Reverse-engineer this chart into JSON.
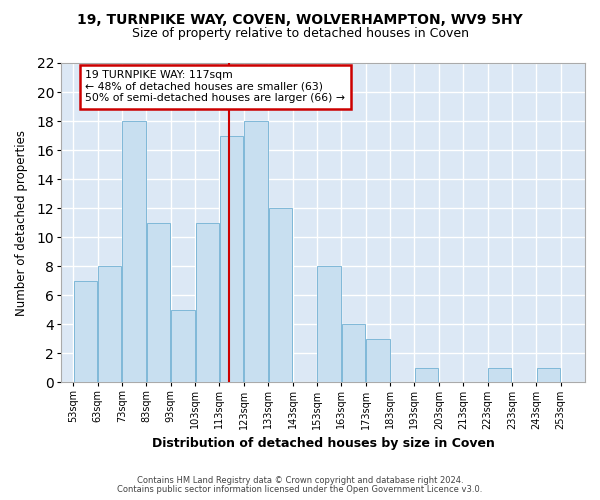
{
  "title1": "19, TURNPIKE WAY, COVEN, WOLVERHAMPTON, WV9 5HY",
  "title2": "Size of property relative to detached houses in Coven",
  "xlabel": "Distribution of detached houses by size in Coven",
  "ylabel": "Number of detached properties",
  "bins": [
    53,
    63,
    73,
    83,
    93,
    103,
    113,
    123,
    133,
    143,
    153,
    163,
    173,
    183,
    193,
    203,
    213,
    223,
    233,
    243,
    253
  ],
  "counts": [
    7,
    8,
    18,
    11,
    5,
    11,
    17,
    18,
    12,
    0,
    8,
    4,
    3,
    0,
    1,
    0,
    0,
    1,
    0,
    1
  ],
  "bar_color": "#c8dff0",
  "bar_edgecolor": "#7fb8d8",
  "reference_line_x": 117,
  "reference_line_color": "#cc0000",
  "ylim": [
    0,
    22
  ],
  "yticks": [
    0,
    2,
    4,
    6,
    8,
    10,
    12,
    14,
    16,
    18,
    20,
    22
  ],
  "annotation_title": "19 TURNPIKE WAY: 117sqm",
  "annotation_line1": "← 48% of detached houses are smaller (63)",
  "annotation_line2": "50% of semi-detached houses are larger (66) →",
  "annotation_box_facecolor": "white",
  "annotation_box_edgecolor": "#cc0000",
  "footnote1": "Contains HM Land Registry data © Crown copyright and database right 2024.",
  "footnote2": "Contains public sector information licensed under the Open Government Licence v3.0.",
  "plot_bg_color": "#dce8f5",
  "fig_bg_color": "#ffffff",
  "grid_color": "#ffffff",
  "spine_color": "#aaaaaa"
}
